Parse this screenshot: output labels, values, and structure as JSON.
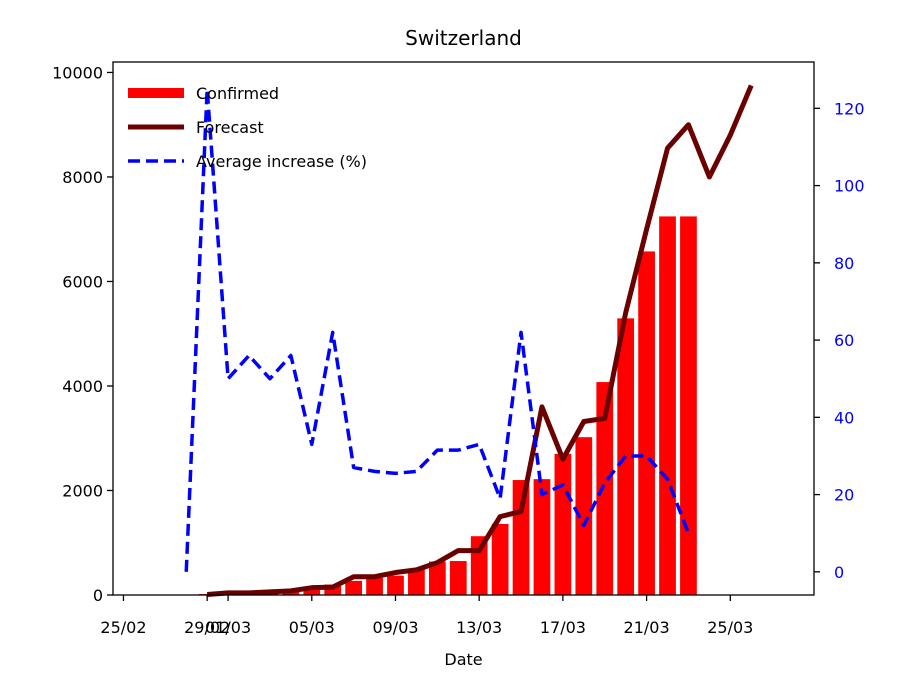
{
  "chart_data": {
    "type": "bar",
    "title": "Switzerland",
    "xlabel": "Date",
    "ylabel": "",
    "ylim": [
      0,
      10200
    ],
    "y2lim": [
      -6,
      132
    ],
    "x_tick_labels": [
      "25/02",
      "29/02",
      "01/03",
      "05/03",
      "09/03",
      "13/03",
      "17/03",
      "21/03",
      "25/03"
    ],
    "x_tick_days": [
      0,
      4,
      5,
      9,
      13,
      17,
      21,
      25,
      29
    ],
    "y_ticks": [
      0,
      2000,
      4000,
      6000,
      8000,
      10000
    ],
    "y2_ticks": [
      0,
      20,
      40,
      60,
      80,
      100,
      120
    ],
    "y2_color": "#0000ff",
    "legend_position": "upper-left",
    "series": [
      {
        "name": "Confirmed",
        "type": "bar",
        "color": "#ff0000",
        "x": [
          "28/02",
          "29/02",
          "01/03",
          "02/03",
          "03/03",
          "04/03",
          "05/03",
          "06/03",
          "07/03",
          "08/03",
          "09/03",
          "10/03",
          "11/03",
          "12/03",
          "13/03",
          "14/03",
          "15/03",
          "16/03",
          "17/03",
          "18/03",
          "19/03",
          "20/03",
          "21/03",
          "22/03",
          "23/03"
        ],
        "values": [
          8,
          18,
          27,
          42,
          56,
          90,
          120,
          200,
          270,
          330,
          370,
          490,
          640,
          650,
          1125,
          1360,
          2200,
          2217,
          2700,
          3020,
          4075,
          5294,
          6575,
          7245,
          7245
        ]
      },
      {
        "name": "Forecast",
        "type": "line",
        "color": "#6b0000",
        "x": [
          "29/02",
          "01/03",
          "02/03",
          "03/03",
          "04/03",
          "05/03",
          "06/03",
          "07/03",
          "08/03",
          "09/03",
          "10/03",
          "11/03",
          "12/03",
          "13/03",
          "14/03",
          "15/03",
          "16/03",
          "17/03",
          "18/03",
          "19/03",
          "20/03",
          "21/03",
          "22/03",
          "23/03",
          "24/03",
          "25/03",
          "26/03"
        ],
        "values": [
          10,
          40,
          40,
          60,
          80,
          140,
          150,
          350,
          350,
          430,
          480,
          620,
          850,
          850,
          1500,
          1600,
          3600,
          2600,
          3320,
          3380,
          5400,
          7000,
          8550,
          9000,
          8000,
          8800,
          9750
        ]
      },
      {
        "name": "Average increase (%)",
        "type": "line",
        "dash": true,
        "axis": "right",
        "color": "#0000ff",
        "x": [
          "28/02",
          "29/02",
          "01/03",
          "02/03",
          "03/03",
          "04/03",
          "05/03",
          "06/03",
          "07/03",
          "08/03",
          "09/03",
          "10/03",
          "11/03",
          "12/03",
          "13/03",
          "14/03",
          "15/03",
          "16/03",
          "17/03",
          "18/03",
          "19/03",
          "20/03",
          "21/03",
          "22/03",
          "23/03"
        ],
        "values": [
          0,
          125,
          50,
          56,
          50,
          56,
          33,
          62,
          27,
          26,
          25.5,
          26,
          31.5,
          31.5,
          33,
          19,
          62,
          20,
          22.5,
          12,
          23,
          30,
          30,
          24,
          10
        ]
      }
    ]
  }
}
